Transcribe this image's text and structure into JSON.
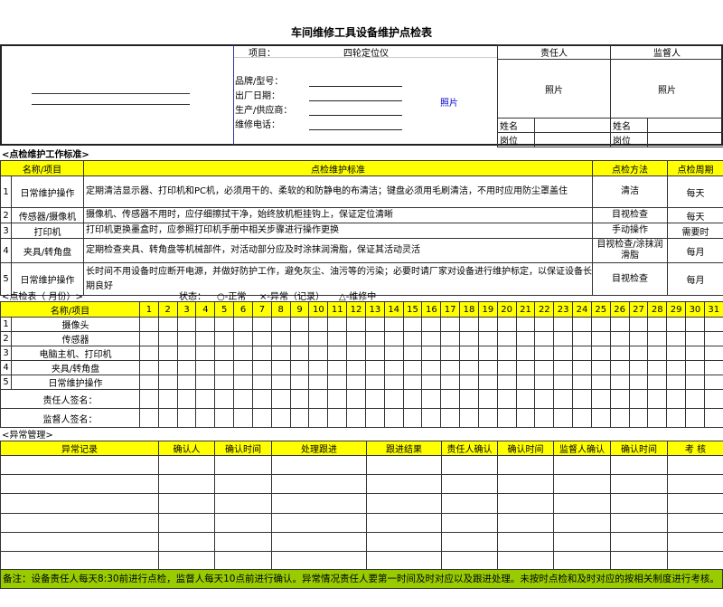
{
  "title": "车间维修工具设备维护点检表",
  "header": {
    "item_label": "项目：",
    "item_value": "四轮定位仪",
    "fields": [
      "品牌/型号：",
      "出厂日期：",
      "生产/供应商：",
      "维修电话："
    ],
    "photo": "照片",
    "responsible": {
      "title": "责任人",
      "photo": "照片",
      "name_label": "姓名",
      "post_label": "岗位"
    },
    "supervisor": {
      "title": "监督人",
      "photo": "照片",
      "name_label": "姓名",
      "post_label": "岗位"
    }
  },
  "standards": {
    "section": "<点检维护工作标准>",
    "headers": [
      "名称/项目",
      "点检维护标准",
      "点检方法",
      "点检周期"
    ],
    "rows": [
      {
        "no": "1",
        "name": "日常维护操作",
        "std": "定期清洁显示器、打印机和PC机，必须用干的、柔软的和防静电的布清洁；键盘必须用毛刷清洁，不用时应用防尘罩盖住",
        "method": "清洁",
        "cycle": "每天"
      },
      {
        "no": "2",
        "name": "传感器/摄像机",
        "std": "摄像机、传感器不用时，应仔细擦拭干净，始终放机柜挂钩上，保证定位清晰",
        "method": "目视检查",
        "cycle": "每天"
      },
      {
        "no": "3",
        "name": "打印机",
        "std": "打印机更换墨盒时，应参照打印机手册中相关步骤进行操作更换",
        "method": "手动操作",
        "cycle": "需要时"
      },
      {
        "no": "4",
        "name": "夹具/转角盘",
        "std": "定期检查夹具、转角盘等机械部件，对活动部分应及时涂抹润滑脂，保证其活动灵活",
        "method": "目视检查/涂抹润滑脂",
        "cycle": "每月"
      },
      {
        "no": "5",
        "name": "日常维护操作",
        "std": "长时间不用设备时应断开电源，并做好防护工作，避免灰尘、油污等的污染；必要时请厂家对设备进行维护标定，以保证设备长期良好",
        "method": "目视检查",
        "cycle": "每月"
      }
    ]
  },
  "checklist": {
    "section": "<点检表（    月份）>",
    "status_label": "状态：",
    "status": [
      "○-正常",
      "×-异常（记录）",
      "△-维修中"
    ],
    "header": "名称/项目",
    "days": [
      "1",
      "2",
      "3",
      "4",
      "5",
      "6",
      "7",
      "8",
      "9",
      "10",
      "11",
      "12",
      "13",
      "14",
      "15",
      "16",
      "17",
      "18",
      "19",
      "20",
      "21",
      "22",
      "23",
      "24",
      "25",
      "26",
      "27",
      "28",
      "29",
      "30",
      "31"
    ],
    "rows": [
      {
        "no": "1",
        "name": "摄像头"
      },
      {
        "no": "2",
        "name": "传感器"
      },
      {
        "no": "3",
        "name": "电脑主机、打印机"
      },
      {
        "no": "4",
        "name": "夹具/转角盘"
      },
      {
        "no": "5",
        "name": "日常维护操作"
      }
    ],
    "signs": [
      "责任人签名：",
      "监督人签名："
    ]
  },
  "abnormal": {
    "section": "<异常管理>",
    "headers": [
      "异常记录",
      "确认人",
      "确认时间",
      "处理跟进",
      "跟进结果",
      "责任人确认",
      "确认时间",
      "监督人确认",
      "确认时间",
      "考 核"
    ]
  },
  "note": "备注：设备责任人每天8:30前进行点检，监督人每天10点前进行确认。异常情况责任人要第一时间及时对应以及跟进处理。未按时点检和及时对应的按相关制度进行考核。",
  "colors": {
    "header_fill": "#ffff00",
    "note_fill": "#99cc00",
    "photo_text": "#0000cc"
  }
}
